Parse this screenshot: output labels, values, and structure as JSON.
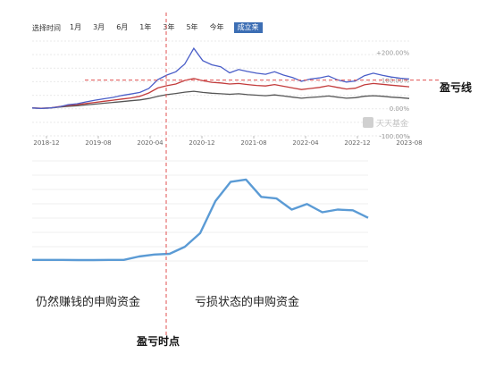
{
  "range_selector": {
    "label": "选择时间",
    "options": [
      "1月",
      "3月",
      "6月",
      "1年",
      "3年",
      "5年",
      "今年",
      "成立来"
    ],
    "active_index": 7
  },
  "annotations": {
    "breakeven_line": "盈亏线",
    "still_profit_purchases": "仍然赚钱的申购资金",
    "loss_state_purchases": "亏损状态的申购资金",
    "breakeven_point": "盈亏时点"
  },
  "watermark": "天天基金",
  "colors": {
    "fund": "#4a5ec8",
    "benchmark": "#c23b3b",
    "index": "#555555",
    "flow": "#5b9bd5",
    "annotation": "#e05050",
    "active_btn": "#3c6eb4"
  },
  "chart_data": [
    {
      "type": "line",
      "x_ticks": [
        "2018-12",
        "2019-08",
        "2020-04",
        "2020-12",
        "2021-08",
        "2022-04",
        "2022-12",
        "2023-08"
      ],
      "y_ticks": [
        "200.00%",
        "100.00%",
        "0.00%",
        "-100.00%"
      ],
      "y_ticks_display": [
        "+200.00%",
        "100.00%",
        "0.00%",
        "-100.00%"
      ],
      "ylim": [
        -100,
        240
      ],
      "breakeven_y": 100,
      "series": [
        {
          "key": "fund",
          "values": [
            0,
            -2,
            0,
            4,
            12,
            15,
            22,
            28,
            33,
            38,
            45,
            50,
            56,
            70,
            102,
            118,
            130,
            158,
            214,
            170,
            155,
            148,
            126,
            138,
            131,
            125,
            121,
            130,
            118,
            109,
            96,
            104,
            108,
            115,
            101,
            93,
            97,
            116,
            125,
            117,
            111,
            107,
            104
          ]
        },
        {
          "key": "benchmark",
          "values": [
            0,
            -1,
            0,
            5,
            9,
            12,
            16,
            20,
            24,
            28,
            32,
            36,
            42,
            54,
            72,
            80,
            86,
            99,
            106,
            98,
            92,
            90,
            86,
            88,
            84,
            81,
            79,
            84,
            78,
            72,
            66,
            70,
            74,
            80,
            74,
            68,
            71,
            83,
            88,
            85,
            82,
            79,
            76
          ]
        },
        {
          "key": "index",
          "values": [
            0,
            -1,
            0,
            3,
            6,
            8,
            11,
            14,
            17,
            20,
            23,
            26,
            29,
            34,
            42,
            48,
            52,
            57,
            60,
            56,
            53,
            51,
            49,
            51,
            48,
            46,
            44,
            47,
            43,
            39,
            35,
            38,
            40,
            43,
            39,
            35,
            37,
            42,
            44,
            42,
            39,
            37,
            34
          ]
        }
      ]
    },
    {
      "type": "line",
      "series": [
        {
          "key": "flow",
          "values": [
            0.5,
            0.5,
            0.5,
            0.4,
            0.4,
            0.5,
            0.5,
            2.0,
            2.9,
            3.2,
            6.4,
            12.5,
            26.9,
            35.6,
            36.6,
            28.8,
            28.1,
            23.1,
            25.6,
            21.9,
            23.1,
            22.8,
            19.4
          ]
        }
      ],
      "ylim": [
        0,
        45
      ]
    }
  ]
}
